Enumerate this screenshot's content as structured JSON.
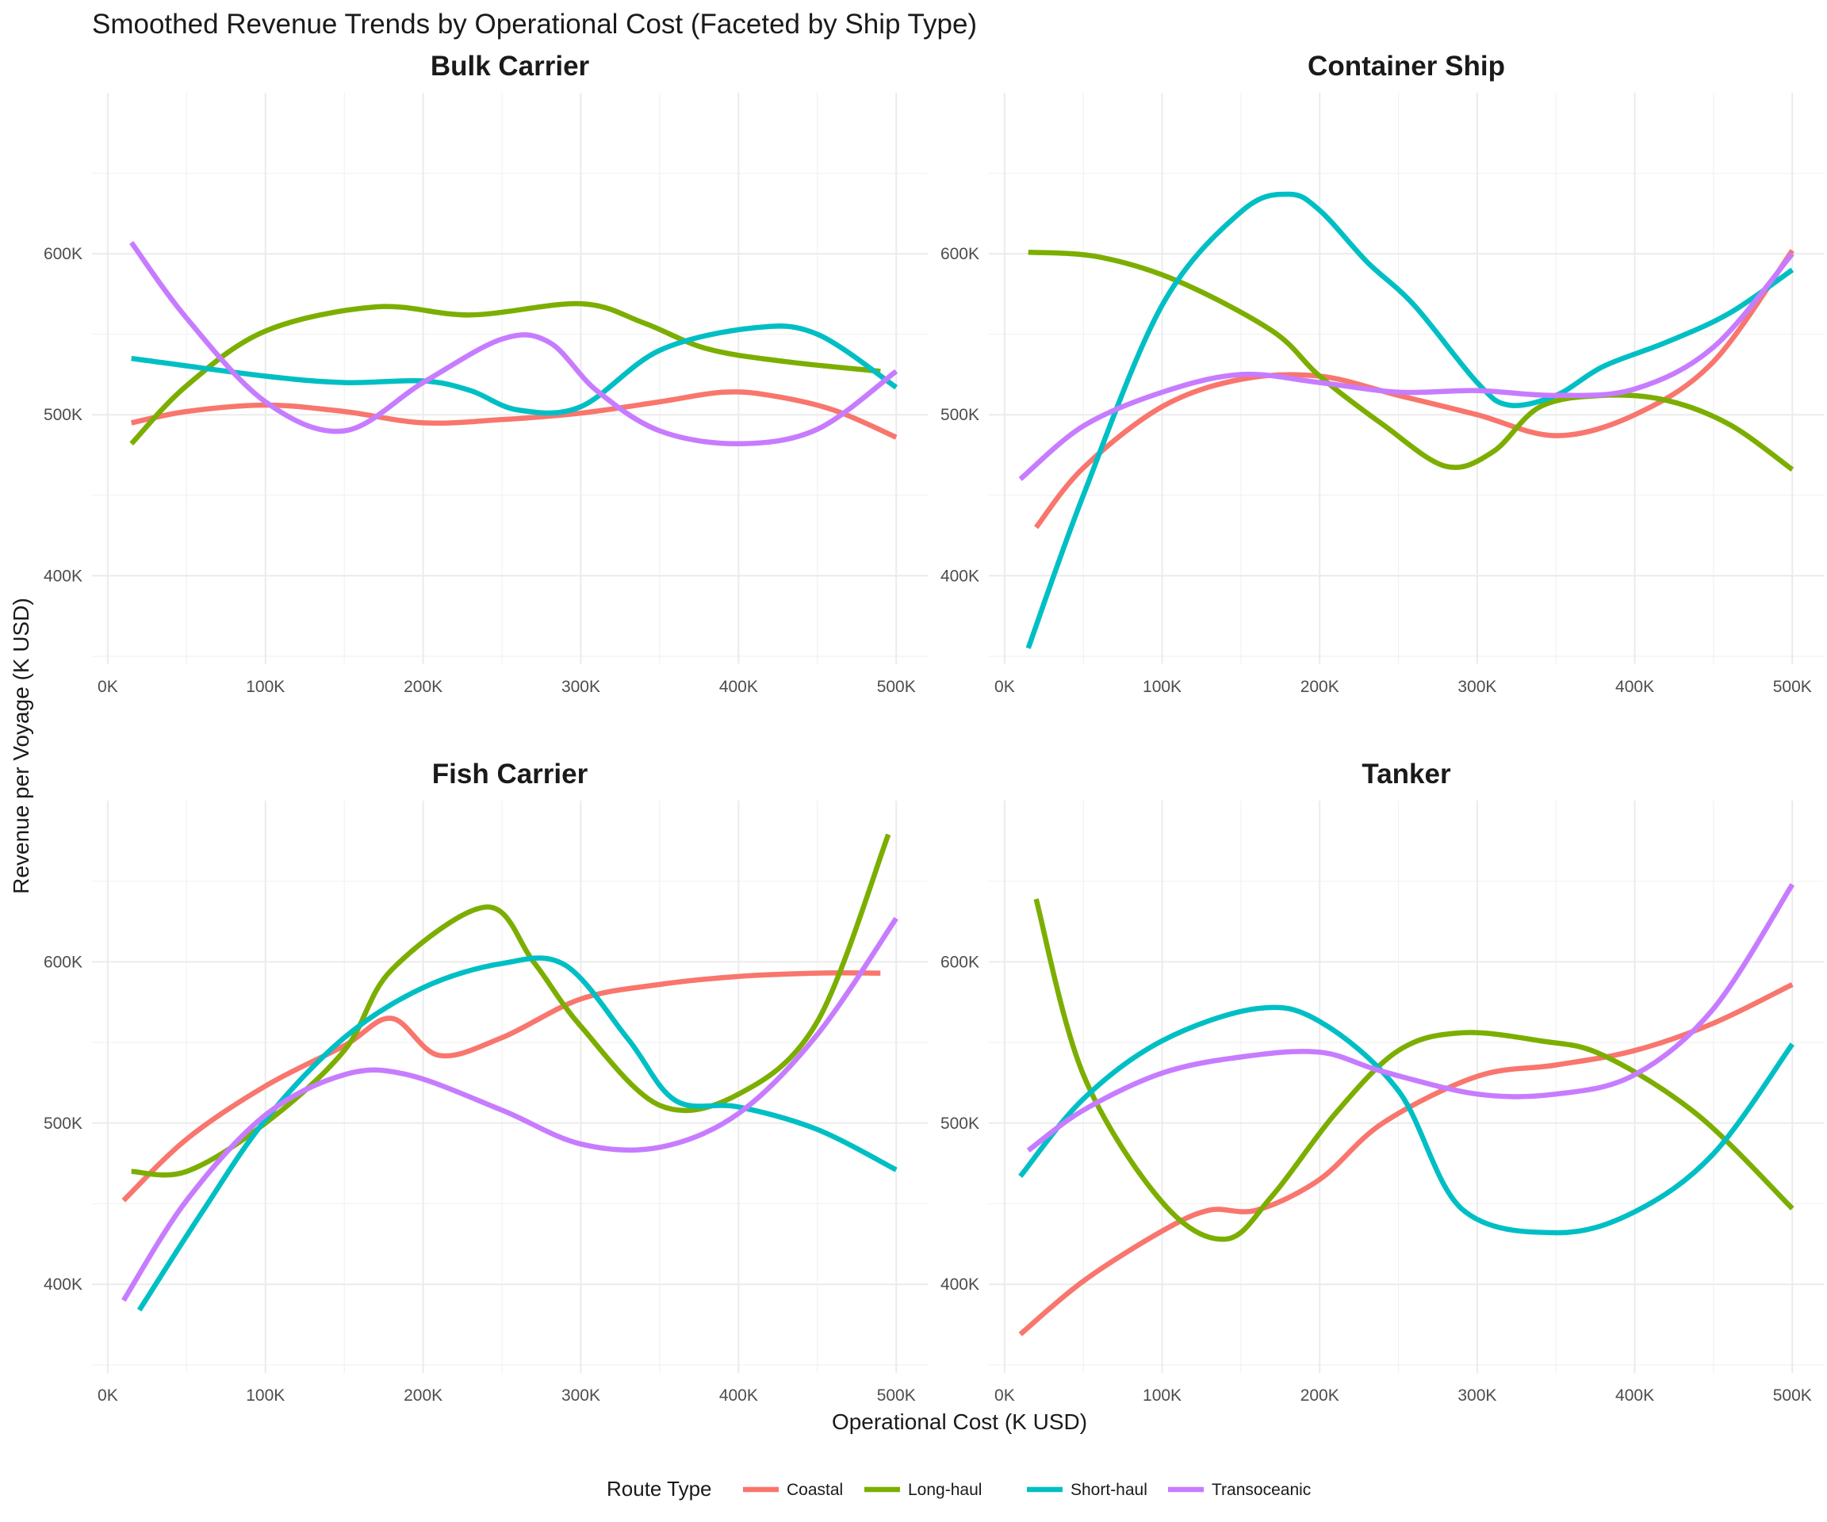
{
  "chart_data": {
    "type": "line",
    "title": "Smoothed Revenue Trends by Operational Cost (Faceted by Ship Type)",
    "xlabel": "Operational Cost (K USD)",
    "ylabel": "Revenue per Voyage (K USD)",
    "xlim": [
      -10000,
      520000
    ],
    "ylim": [
      345000,
      700000
    ],
    "x_ticks": [
      "0K",
      "100K",
      "200K",
      "300K",
      "400K",
      "500K"
    ],
    "y_ticks": [
      "400K",
      "500K",
      "600K"
    ],
    "grid": true,
    "legend": {
      "title": "Route Type",
      "placement": "bottom",
      "entries": [
        {
          "name": "Coastal",
          "color": "#F8766D"
        },
        {
          "name": "Long-haul",
          "color": "#7CAE00"
        },
        {
          "name": "Short-haul",
          "color": "#00BFC4"
        },
        {
          "name": "Transoceanic",
          "color": "#C77CFF"
        }
      ]
    },
    "facets": [
      {
        "title": "Bulk Carrier",
        "series": [
          {
            "name": "Coastal",
            "points": [
              [
                15000,
                495000
              ],
              [
                50000,
                502000
              ],
              [
                100000,
                506000
              ],
              [
                150000,
                502000
              ],
              [
                200000,
                495000
              ],
              [
                250000,
                497000
              ],
              [
                300000,
                501000
              ],
              [
                350000,
                508000
              ],
              [
                390000,
                514000
              ],
              [
                420000,
                512000
              ],
              [
                460000,
                503000
              ],
              [
                500000,
                486000
              ]
            ]
          },
          {
            "name": "Long-haul",
            "points": [
              [
                15000,
                482000
              ],
              [
                50000,
                518000
              ],
              [
                100000,
                552000
              ],
              [
                170000,
                567000
              ],
              [
                230000,
                562000
              ],
              [
                300000,
                569000
              ],
              [
                340000,
                557000
              ],
              [
                380000,
                541000
              ],
              [
                430000,
                533000
              ],
              [
                490000,
                527000
              ]
            ]
          },
          {
            "name": "Short-haul",
            "points": [
              [
                15000,
                535000
              ],
              [
                100000,
                524000
              ],
              [
                150000,
                520000
              ],
              [
                200000,
                521000
              ],
              [
                230000,
                515000
              ],
              [
                260000,
                503000
              ],
              [
                300000,
                505000
              ],
              [
                350000,
                540000
              ],
              [
                410000,
                554000
              ],
              [
                450000,
                550000
              ],
              [
                500000,
                517000
              ]
            ]
          },
          {
            "name": "Transoceanic",
            "points": [
              [
                15000,
                607000
              ],
              [
                50000,
                560000
              ],
              [
                100000,
                508000
              ],
              [
                150000,
                490000
              ],
              [
                200000,
                520000
              ],
              [
                250000,
                547000
              ],
              [
                280000,
                545000
              ],
              [
                310000,
                515000
              ],
              [
                350000,
                490000
              ],
              [
                400000,
                482000
              ],
              [
                450000,
                491000
              ],
              [
                500000,
                527000
              ]
            ]
          }
        ]
      },
      {
        "title": "Container Ship",
        "series": [
          {
            "name": "Coastal",
            "points": [
              [
                20000,
                430000
              ],
              [
                50000,
                467000
              ],
              [
                100000,
                505000
              ],
              [
                150000,
                522000
              ],
              [
                200000,
                524000
              ],
              [
                250000,
                512000
              ],
              [
                300000,
                500000
              ],
              [
                350000,
                487000
              ],
              [
                400000,
                500000
              ],
              [
                450000,
                533000
              ],
              [
                500000,
                602000
              ]
            ]
          },
          {
            "name": "Long-haul",
            "points": [
              [
                15000,
                601000
              ],
              [
                60000,
                598000
              ],
              [
                110000,
                583000
              ],
              [
                170000,
                552000
              ],
              [
                200000,
                524000
              ],
              [
                240000,
                494000
              ],
              [
                280000,
                468000
              ],
              [
                310000,
                477000
              ],
              [
                340000,
                505000
              ],
              [
                380000,
                512000
              ],
              [
                420000,
                509000
              ],
              [
                460000,
                494000
              ],
              [
                500000,
                466000
              ]
            ]
          },
          {
            "name": "Short-haul",
            "points": [
              [
                15000,
                355000
              ],
              [
                50000,
                450000
              ],
              [
                100000,
                568000
              ],
              [
                150000,
                626000
              ],
              [
                180000,
                637000
              ],
              [
                200000,
                627000
              ],
              [
                230000,
                595000
              ],
              [
                260000,
                568000
              ],
              [
                300000,
                520000
              ],
              [
                320000,
                506000
              ],
              [
                350000,
                512000
              ],
              [
                380000,
                530000
              ],
              [
                420000,
                545000
              ],
              [
                460000,
                563000
              ],
              [
                500000,
                590000
              ]
            ]
          },
          {
            "name": "Transoceanic",
            "points": [
              [
                10000,
                460000
              ],
              [
                50000,
                493000
              ],
              [
                100000,
                514000
              ],
              [
                150000,
                525000
              ],
              [
                200000,
                520000
              ],
              [
                250000,
                514000
              ],
              [
                300000,
                515000
              ],
              [
                350000,
                512000
              ],
              [
                400000,
                516000
              ],
              [
                450000,
                542000
              ],
              [
                500000,
                600000
              ]
            ]
          }
        ]
      },
      {
        "title": "Fish Carrier",
        "series": [
          {
            "name": "Coastal",
            "points": [
              [
                10000,
                452000
              ],
              [
                50000,
                490000
              ],
              [
                100000,
                523000
              ],
              [
                150000,
                548000
              ],
              [
                180000,
                565000
              ],
              [
                210000,
                542000
              ],
              [
                250000,
                553000
              ],
              [
                300000,
                577000
              ],
              [
                350000,
                586000
              ],
              [
                400000,
                591000
              ],
              [
                450000,
                593000
              ],
              [
                490000,
                593000
              ]
            ]
          },
          {
            "name": "Long-haul",
            "points": [
              [
                15000,
                470000
              ],
              [
                50000,
                470000
              ],
              [
                100000,
                500000
              ],
              [
                150000,
                545000
              ],
              [
                180000,
                595000
              ],
              [
                240000,
                634000
              ],
              [
                270000,
                600000
              ],
              [
                300000,
                560000
              ],
              [
                350000,
                511000
              ],
              [
                400000,
                518000
              ],
              [
                450000,
                563000
              ],
              [
                495000,
                679000
              ]
            ]
          },
          {
            "name": "Short-haul",
            "points": [
              [
                20000,
                384000
              ],
              [
                60000,
                445000
              ],
              [
                100000,
                502000
              ],
              [
                150000,
                553000
              ],
              [
                200000,
                584000
              ],
              [
                250000,
                599000
              ],
              [
                290000,
                598000
              ],
              [
                330000,
                552000
              ],
              [
                360000,
                514000
              ],
              [
                400000,
                510000
              ],
              [
                450000,
                496000
              ],
              [
                500000,
                471000
              ]
            ]
          },
          {
            "name": "Transoceanic",
            "points": [
              [
                10000,
                390000
              ],
              [
                50000,
                452000
              ],
              [
                100000,
                505000
              ],
              [
                150000,
                530000
              ],
              [
                190000,
                530000
              ],
              [
                250000,
                508000
              ],
              [
                300000,
                487000
              ],
              [
                350000,
                485000
              ],
              [
                400000,
                506000
              ],
              [
                450000,
                555000
              ],
              [
                500000,
                627000
              ]
            ]
          }
        ]
      },
      {
        "title": "Tanker",
        "series": [
          {
            "name": "Coastal",
            "points": [
              [
                10000,
                369000
              ],
              [
                50000,
                402000
              ],
              [
                100000,
                433000
              ],
              [
                130000,
                446000
              ],
              [
                160000,
                446000
              ],
              [
                200000,
                465000
              ],
              [
                240000,
                500000
              ],
              [
                300000,
                529000
              ],
              [
                350000,
                536000
              ],
              [
                400000,
                545000
              ],
              [
                450000,
                562000
              ],
              [
                500000,
                586000
              ]
            ]
          },
          {
            "name": "Long-haul",
            "points": [
              [
                20000,
                639000
              ],
              [
                50000,
                530000
              ],
              [
                100000,
                451000
              ],
              [
                140000,
                428000
              ],
              [
                170000,
                455000
              ],
              [
                210000,
                506000
              ],
              [
                250000,
                545000
              ],
              [
                290000,
                556000
              ],
              [
                340000,
                551000
              ],
              [
                380000,
                542000
              ],
              [
                440000,
                505000
              ],
              [
                500000,
                447000
              ]
            ]
          },
          {
            "name": "Short-haul",
            "points": [
              [
                10000,
                467000
              ],
              [
                50000,
                515000
              ],
              [
                100000,
                551000
              ],
              [
                160000,
                571000
              ],
              [
                200000,
                563000
              ],
              [
                250000,
                520000
              ],
              [
                290000,
                447000
              ],
              [
                350000,
                432000
              ],
              [
                400000,
                445000
              ],
              [
                450000,
                481000
              ],
              [
                500000,
                549000
              ]
            ]
          },
          {
            "name": "Transoceanic",
            "points": [
              [
                15000,
                483000
              ],
              [
                50000,
                508000
              ],
              [
                100000,
                531000
              ],
              [
                150000,
                541000
              ],
              [
                200000,
                544000
              ],
              [
                240000,
                532000
              ],
              [
                300000,
                518000
              ],
              [
                350000,
                518000
              ],
              [
                400000,
                530000
              ],
              [
                450000,
                571000
              ],
              [
                500000,
                648000
              ]
            ]
          }
        ]
      }
    ]
  }
}
